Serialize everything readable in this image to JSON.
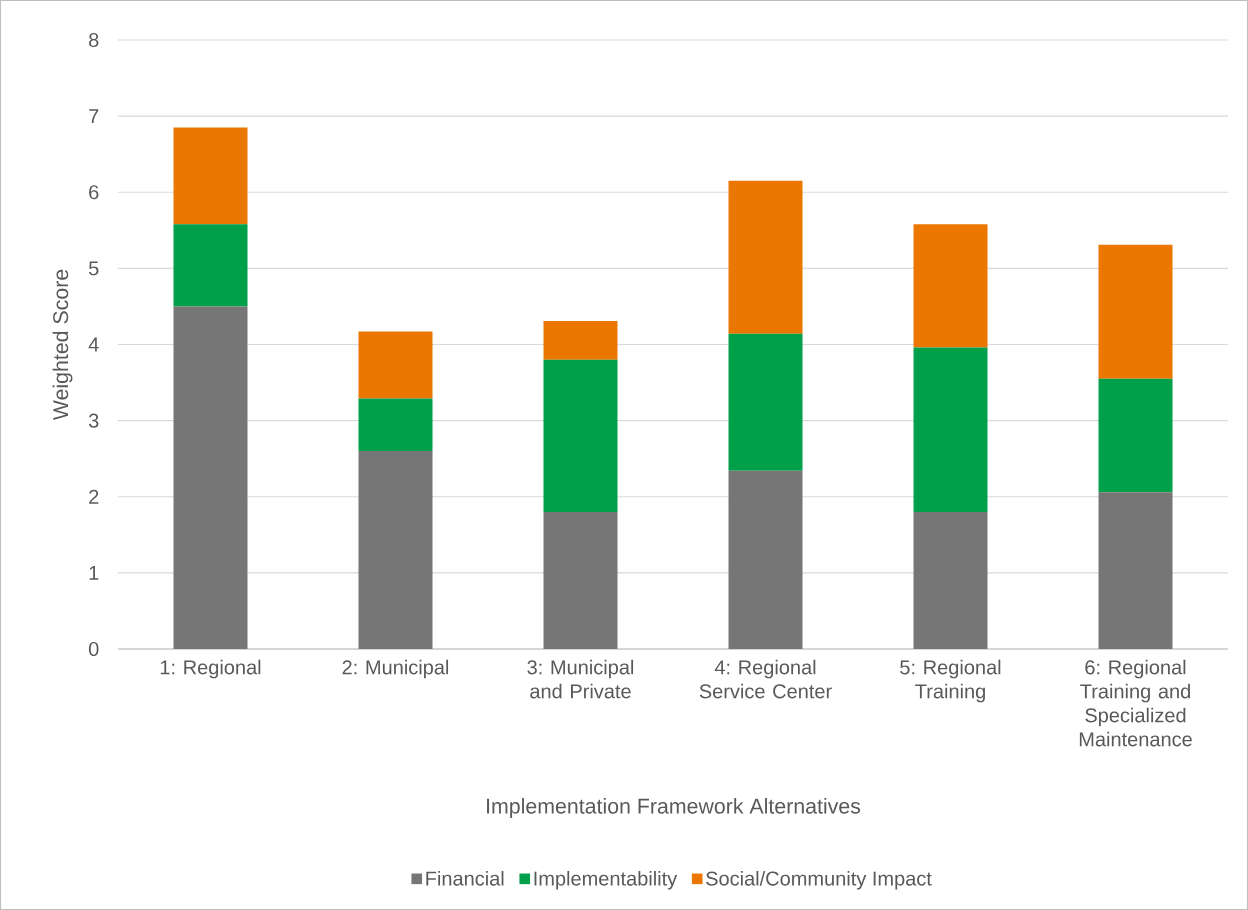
{
  "chart_data": {
    "type": "bar",
    "stacked": true,
    "xlabel": "Implementation Framework Alternatives",
    "ylabel": "Weighted Score",
    "categories": [
      "1: Regional",
      "2: Municipal",
      "3: Municipal and Private",
      "4: Regional Service Center",
      "5: Regional Training",
      "6: Regional Training and Specialized Maintenance"
    ],
    "series": [
      {
        "name": "Financial",
        "color": "#767676",
        "values": [
          4.5,
          2.6,
          1.8,
          2.34,
          1.8,
          2.06
        ]
      },
      {
        "name": "Implementability",
        "color": "#00a04b",
        "values": [
          1.08,
          0.69,
          2.0,
          1.8,
          2.16,
          1.49
        ]
      },
      {
        "name": "Social/Community Impact",
        "color": "#ec7700",
        "values": [
          1.27,
          0.88,
          0.51,
          2.01,
          1.62,
          1.76
        ]
      }
    ],
    "ylim": [
      0,
      8
    ],
    "yticks": [
      0,
      1,
      2,
      3,
      4,
      5,
      6,
      7,
      8
    ],
    "grid": "y",
    "legend": "bottom"
  }
}
